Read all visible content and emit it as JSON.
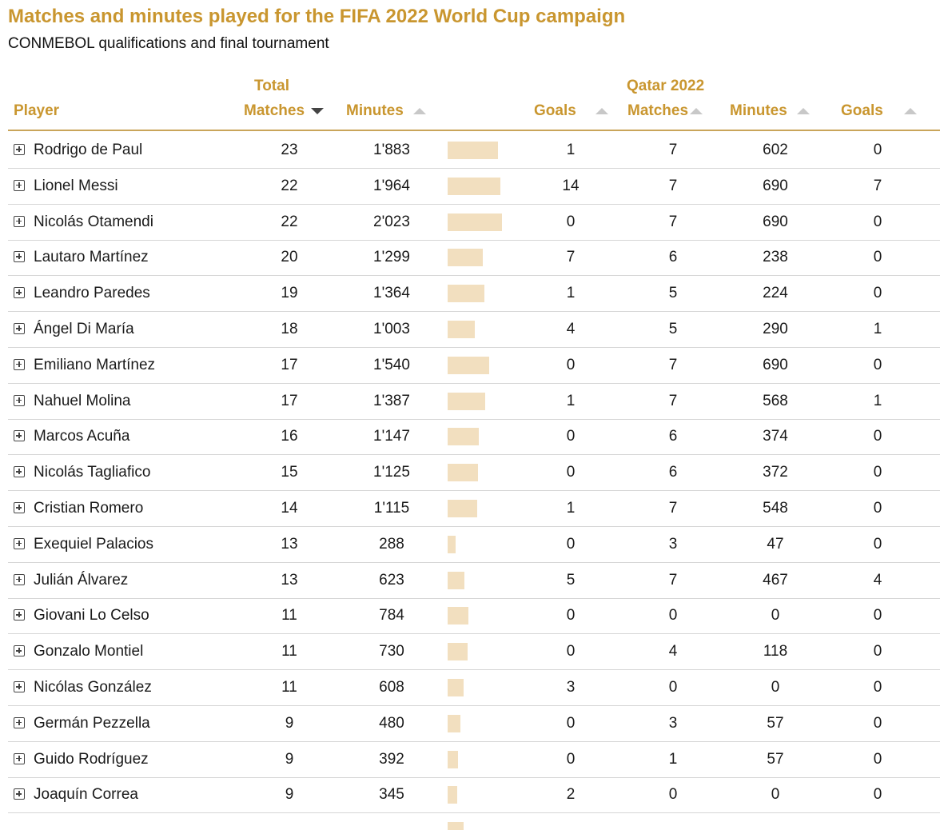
{
  "title": "Matches and minutes played for the FIFA 2022 World Cup campaign",
  "subtitle": "CONMEBOL qualifications and final tournament",
  "headers": {
    "player": "Player",
    "total_group": "Total",
    "total_matches": "Matches",
    "total_minutes": "Minutes",
    "total_goals": "Goals",
    "qatar_group": "Qatar 2022",
    "qatar_matches": "Matches",
    "qatar_minutes": "Minutes",
    "qatar_goals": "Goals"
  },
  "colors": {
    "accent": "#c9962f",
    "bar": "#f2dfbf",
    "divider": "#d6d6d6"
  },
  "icons": {
    "expand": "plus-square-icon",
    "sort_asc": "sort-up-icon",
    "sort_desc": "sort-down-icon"
  },
  "sort": {
    "column": "total_matches",
    "direction": "descending"
  },
  "chart_data": {
    "type": "table",
    "title": "Matches and minutes played for the FIFA 2022 World Cup campaign",
    "subtitle": "CONMEBOL qualifications and final tournament",
    "columns": [
      "Player",
      "Total Matches",
      "Total Minutes",
      "Total Goals",
      "Qatar 2022 Matches",
      "Qatar 2022 Minutes",
      "Qatar 2022 Goals"
    ],
    "rows": [
      {
        "player": "Rodrigo de Paul",
        "matches": "23",
        "minutes": "1'883",
        "minutes_value": 1883,
        "goals": "1",
        "q_matches": "7",
        "q_minutes": "602",
        "q_goals": "0"
      },
      {
        "player": "Lionel Messi",
        "matches": "22",
        "minutes": "1'964",
        "minutes_value": 1964,
        "goals": "14",
        "q_matches": "7",
        "q_minutes": "690",
        "q_goals": "7"
      },
      {
        "player": "Nicolás Otamendi",
        "matches": "22",
        "minutes": "2'023",
        "minutes_value": 2023,
        "goals": "0",
        "q_matches": "7",
        "q_minutes": "690",
        "q_goals": "0"
      },
      {
        "player": "Lautaro Martínez",
        "matches": "20",
        "minutes": "1'299",
        "minutes_value": 1299,
        "goals": "7",
        "q_matches": "6",
        "q_minutes": "238",
        "q_goals": "0"
      },
      {
        "player": "Leandro Paredes",
        "matches": "19",
        "minutes": "1'364",
        "minutes_value": 1364,
        "goals": "1",
        "q_matches": "5",
        "q_minutes": "224",
        "q_goals": "0"
      },
      {
        "player": "Ángel Di María",
        "matches": "18",
        "minutes": "1'003",
        "minutes_value": 1003,
        "goals": "4",
        "q_matches": "5",
        "q_minutes": "290",
        "q_goals": "1"
      },
      {
        "player": "Emiliano Martínez",
        "matches": "17",
        "minutes": "1'540",
        "minutes_value": 1540,
        "goals": "0",
        "q_matches": "7",
        "q_minutes": "690",
        "q_goals": "0"
      },
      {
        "player": "Nahuel Molina",
        "matches": "17",
        "minutes": "1'387",
        "minutes_value": 1387,
        "goals": "1",
        "q_matches": "7",
        "q_minutes": "568",
        "q_goals": "1"
      },
      {
        "player": "Marcos Acuña",
        "matches": "16",
        "minutes": "1'147",
        "minutes_value": 1147,
        "goals": "0",
        "q_matches": "6",
        "q_minutes": "374",
        "q_goals": "0"
      },
      {
        "player": "Nicolás Tagliafico",
        "matches": "15",
        "minutes": "1'125",
        "minutes_value": 1125,
        "goals": "0",
        "q_matches": "6",
        "q_minutes": "372",
        "q_goals": "0"
      },
      {
        "player": "Cristian Romero",
        "matches": "14",
        "minutes": "1'115",
        "minutes_value": 1115,
        "goals": "1",
        "q_matches": "7",
        "q_minutes": "548",
        "q_goals": "0"
      },
      {
        "player": "Exequiel Palacios",
        "matches": "13",
        "minutes": "288",
        "minutes_value": 288,
        "goals": "0",
        "q_matches": "3",
        "q_minutes": "47",
        "q_goals": "0"
      },
      {
        "player": "Julián Álvarez",
        "matches": "13",
        "minutes": "623",
        "minutes_value": 623,
        "goals": "5",
        "q_matches": "7",
        "q_minutes": "467",
        "q_goals": "4"
      },
      {
        "player": "Giovani Lo Celso",
        "matches": "11",
        "minutes": "784",
        "minutes_value": 784,
        "goals": "0",
        "q_matches": "0",
        "q_minutes": "0",
        "q_goals": "0"
      },
      {
        "player": "Gonzalo Montiel",
        "matches": "11",
        "minutes": "730",
        "minutes_value": 730,
        "goals": "0",
        "q_matches": "4",
        "q_minutes": "118",
        "q_goals": "0"
      },
      {
        "player": "Nicólas González",
        "matches": "11",
        "minutes": "608",
        "minutes_value": 608,
        "goals": "3",
        "q_matches": "0",
        "q_minutes": "0",
        "q_goals": "0"
      },
      {
        "player": "Germán Pezzella",
        "matches": "9",
        "minutes": "480",
        "minutes_value": 480,
        "goals": "0",
        "q_matches": "3",
        "q_minutes": "57",
        "q_goals": "0"
      },
      {
        "player": "Guido Rodríguez",
        "matches": "9",
        "minutes": "392",
        "minutes_value": 392,
        "goals": "0",
        "q_matches": "1",
        "q_minutes": "57",
        "q_goals": "0"
      },
      {
        "player": "Joaquín Correa",
        "matches": "9",
        "minutes": "345",
        "minutes_value": 345,
        "goals": "2",
        "q_matches": "0",
        "q_minutes": "0",
        "q_goals": "0"
      }
    ]
  }
}
